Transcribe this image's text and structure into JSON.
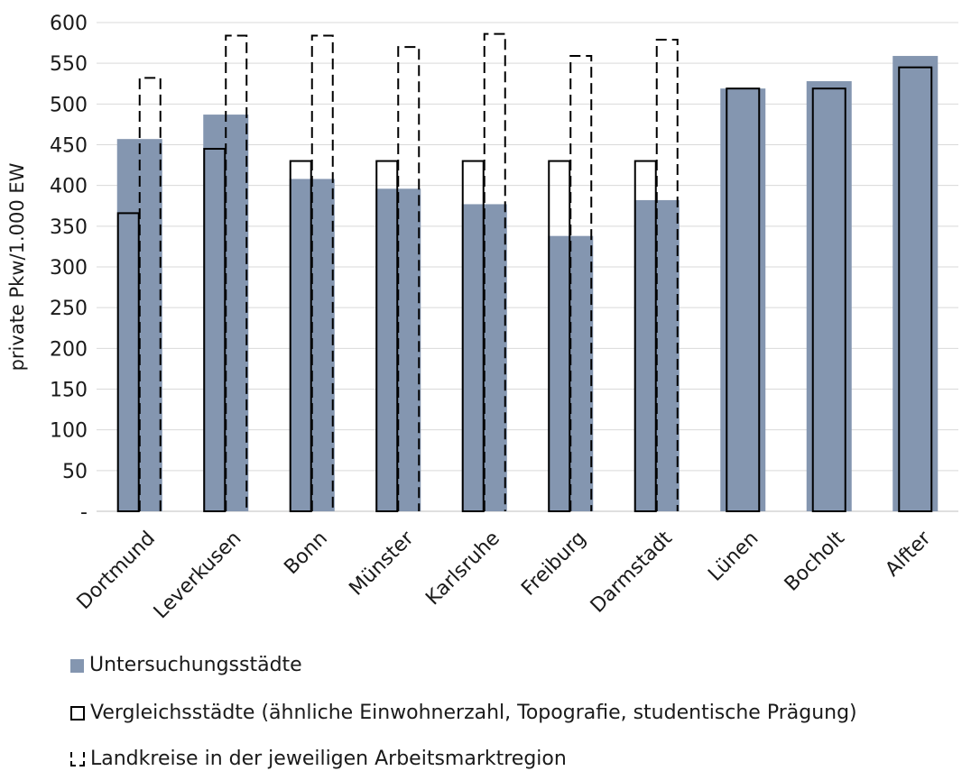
{
  "chart_data": {
    "type": "bar",
    "ylabel": "private Pkw/1.000 EW",
    "ylim": [
      0,
      600
    ],
    "ytick_labels": [
      "-",
      "50",
      "100",
      "150",
      "200",
      "250",
      "300",
      "350",
      "400",
      "450",
      "500",
      "550",
      "600"
    ],
    "categories": [
      "Dortmund",
      "Leverkusen",
      "Bonn",
      "Münster",
      "Karlsruhe",
      "Freiburg",
      "Darmstadt",
      "Lünen",
      "Bocholt",
      "Alfter"
    ],
    "series": [
      {
        "name": "Untersuchungsstädte",
        "style": "filled",
        "color": "#8496b0",
        "values": [
          457,
          487,
          408,
          396,
          377,
          338,
          382,
          519,
          528,
          559
        ]
      },
      {
        "name": "Vergleichsstädte (ähnliche Einwohnerzahl, Topografie, studentische Prägung)",
        "style": "outline",
        "values": [
          366,
          445,
          430,
          430,
          430,
          430,
          430,
          519,
          519,
          545
        ]
      },
      {
        "name": "Landkreise in der jeweiligen Arbeitsmarktregion",
        "style": "dashed",
        "values": [
          532,
          584,
          584,
          570,
          586,
          559,
          579,
          null,
          null,
          null
        ]
      }
    ],
    "legend_position": "bottom",
    "grid": true
  }
}
